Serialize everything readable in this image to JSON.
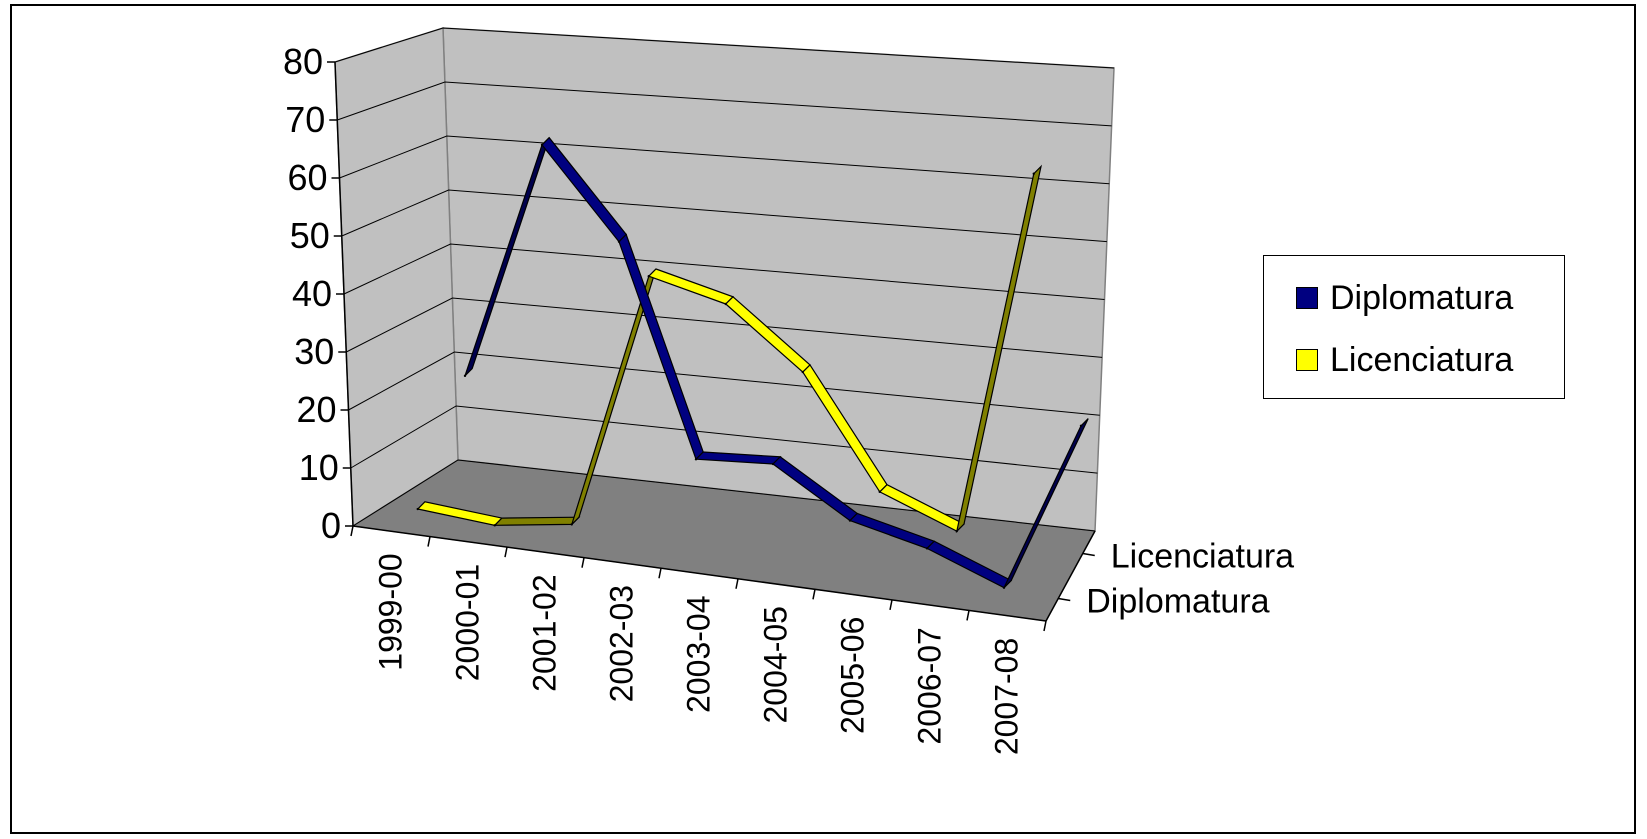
{
  "chart_data": {
    "type": "line",
    "categories": [
      "1999-00",
      "2000-01",
      "2001-02",
      "2002-03",
      "2003-04",
      "2004-05",
      "2005-06",
      "2006-07",
      "2007-08"
    ],
    "series": [
      {
        "name": "Diplomatura",
        "values": [
          19,
          61,
          46,
          10,
          11,
          3,
          0,
          -5,
          25
        ],
        "color": "#000080"
      },
      {
        "name": "Licenciatura",
        "values": [
          1,
          0,
          2,
          47,
          44,
          34,
          15,
          10,
          74
        ],
        "color": "#ffff00"
      }
    ],
    "yticks": [
      "0",
      "10",
      "20",
      "30",
      "40",
      "50",
      "60",
      "70",
      "80"
    ],
    "ylim": [
      0,
      80
    ],
    "depth_labels": [
      "Licenciatura",
      "Diplomatura"
    ],
    "grid": true,
    "legend_position": "right"
  }
}
